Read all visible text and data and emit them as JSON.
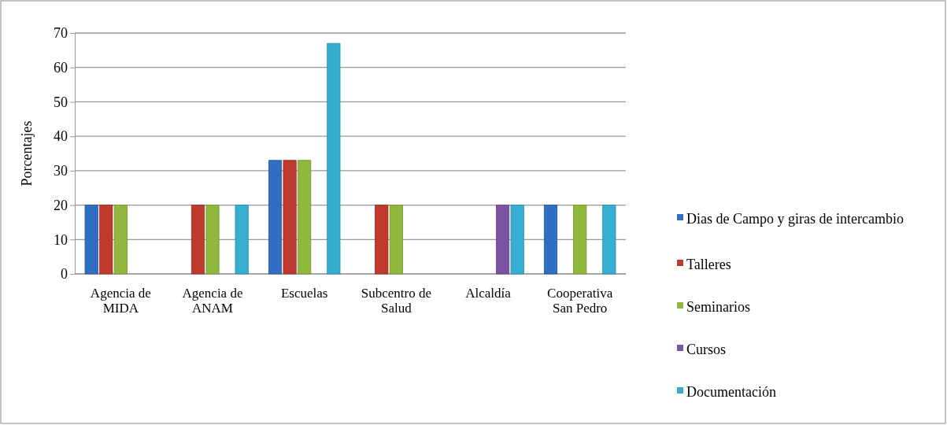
{
  "chart_data": {
    "type": "bar",
    "ylabel": "Porcentajes",
    "categories": [
      "Agencia de MIDA",
      "Agencia de ANAM",
      "Escuelas",
      "Subcentro de Salud",
      "Alcaldía",
      "Cooperativa San Pedro"
    ],
    "series": [
      {
        "name": "Dias de Campo y giras de intercambio",
        "color": "#2f6ec0",
        "values": [
          20,
          null,
          33,
          null,
          null,
          20
        ]
      },
      {
        "name": "Talleres",
        "color": "#c0392f",
        "values": [
          20,
          20,
          33,
          20,
          null,
          null
        ]
      },
      {
        "name": "Seminarios",
        "color": "#8fb83c",
        "values": [
          20,
          20,
          33,
          20,
          null,
          20
        ]
      },
      {
        "name": "Cursos",
        "color": "#7b53a3",
        "values": [
          null,
          null,
          null,
          null,
          20,
          null
        ]
      },
      {
        "name": "Documentación",
        "color": "#35aed0",
        "values": [
          null,
          20,
          67,
          null,
          20,
          20
        ]
      }
    ],
    "ylim": [
      0,
      70
    ],
    "yticks": [
      0,
      10,
      20,
      30,
      40,
      50,
      60,
      70
    ],
    "grid": "y",
    "legend": "right"
  }
}
